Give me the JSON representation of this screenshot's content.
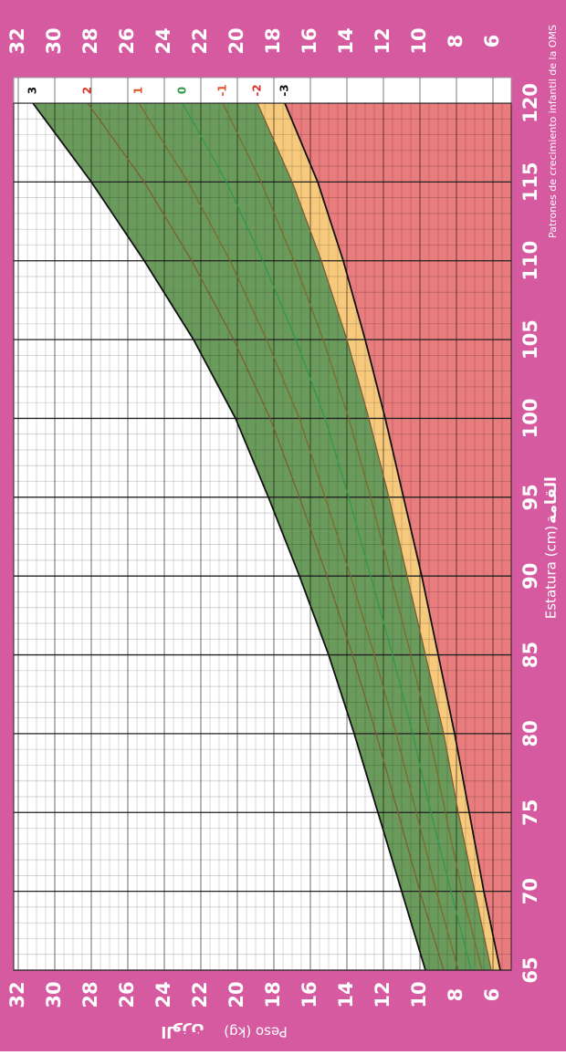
{
  "chart_data": {
    "type": "line",
    "note": "Patrones de crecimiento infantil de la OMS",
    "x_label": "Estatura (cm)",
    "x_label_ar": "القامة",
    "y_label": "Peso (kg)",
    "y_label_ar": "الوزن",
    "x": [
      65,
      70,
      75,
      80,
      85,
      90,
      95,
      100,
      105,
      110,
      115,
      120
    ],
    "xlim": [
      65,
      120
    ],
    "xticks": [
      65,
      70,
      75,
      80,
      85,
      90,
      95,
      100,
      105,
      110,
      115,
      120
    ],
    "ylim": [
      5,
      32.25
    ],
    "yticks": [
      6,
      8,
      10,
      12,
      14,
      16,
      18,
      20,
      22,
      24,
      26,
      28,
      30,
      32
    ],
    "grid": true,
    "background": "#d65aa0",
    "fills": {
      "above": "#ffffff",
      "normal": "#6b9b5c",
      "moderate": "#f7c97c",
      "severe": "#e97c7d"
    },
    "series": [
      {
        "name": "3",
        "color": "#111111",
        "label_color": "#111111",
        "values": [
          9.7,
          11.0,
          12.3,
          13.6,
          15.0,
          16.6,
          18.3,
          20.1,
          22.4,
          25.1,
          28.0,
          31.2
        ]
      },
      {
        "name": "2",
        "color": "#7d5e33",
        "label_color": "#d9342b",
        "values": [
          8.7,
          10.0,
          11.2,
          12.4,
          13.7,
          15.1,
          16.6,
          18.2,
          20.2,
          22.5,
          25.1,
          28.2
        ]
      },
      {
        "name": "1",
        "color": "#7d6a2e",
        "label_color": "#e0552a",
        "values": [
          7.9,
          9.1,
          10.2,
          11.3,
          12.5,
          13.8,
          15.2,
          16.6,
          18.4,
          20.4,
          22.7,
          25.4
        ]
      },
      {
        "name": "0",
        "color": "#2e9a4c",
        "label_color": "#2e9a4c",
        "values": [
          7.2,
          8.3,
          9.4,
          10.4,
          11.5,
          12.7,
          13.9,
          15.2,
          16.8,
          18.6,
          20.6,
          23.0
        ]
      },
      {
        "name": "-1",
        "color": "#7d6a2e",
        "label_color": "#e0552a",
        "values": [
          6.6,
          7.7,
          8.6,
          9.5,
          10.5,
          11.6,
          12.7,
          13.9,
          15.3,
          16.9,
          18.7,
          20.8
        ]
      },
      {
        "name": "-2",
        "color": "#7d5e33",
        "label_color": "#d9342b",
        "values": [
          6.1,
          7.0,
          7.9,
          8.7,
          9.7,
          10.7,
          11.7,
          12.8,
          14.0,
          15.4,
          17.0,
          18.9
        ]
      },
      {
        "name": "-3",
        "color": "#111111",
        "label_color": "#111111",
        "values": [
          5.6,
          6.5,
          7.3,
          8.1,
          9.0,
          9.9,
          10.9,
          11.9,
          13.0,
          14.2,
          15.6,
          17.4
        ]
      }
    ]
  }
}
